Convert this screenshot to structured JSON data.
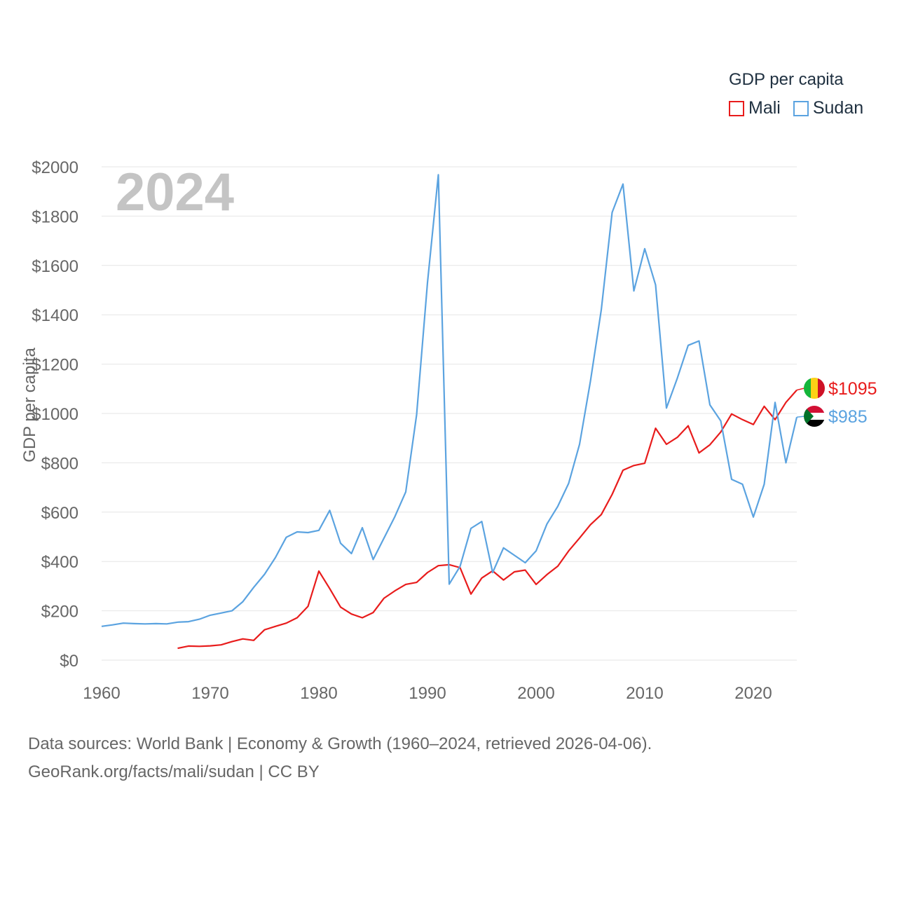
{
  "legend": {
    "title": "GDP per capita",
    "items": [
      {
        "label": "Mali",
        "color": "#e81c1c"
      },
      {
        "label": "Sudan",
        "color": "#5ba3e0"
      }
    ]
  },
  "footer": {
    "line1": "Data sources: World Bank | Economy & Growth (1960–2024, retrieved 2026-04-06).",
    "line2": "GeoRank.org/facts/mali/sudan | CC BY"
  },
  "chart_data": {
    "type": "line",
    "year_label": "2024",
    "ylabel": "GDP per capita",
    "ylim": [
      0,
      2000
    ],
    "xlim": [
      1960,
      2024
    ],
    "yticks": [
      0,
      200,
      400,
      600,
      800,
      1000,
      1200,
      1400,
      1600,
      1800,
      2000
    ],
    "ytick_labels": [
      "$0",
      "$200",
      "$400",
      "$600",
      "$800",
      "$1000",
      "$1200",
      "$1400",
      "$1600",
      "$1800",
      "$2000"
    ],
    "xticks": [
      1960,
      1970,
      1980,
      1990,
      2000,
      2010,
      2020
    ],
    "xtick_labels": [
      "1960",
      "1970",
      "1980",
      "1990",
      "2000",
      "2010",
      "2020"
    ],
    "grid": true,
    "series": [
      {
        "name": "Mali",
        "color": "#e81c1c",
        "end_label": "$1095",
        "flag": "mali",
        "x": [
          1967,
          1968,
          1969,
          1970,
          1971,
          1972,
          1973,
          1974,
          1975,
          1976,
          1977,
          1978,
          1979,
          1980,
          1981,
          1982,
          1983,
          1984,
          1985,
          1986,
          1987,
          1988,
          1989,
          1990,
          1991,
          1992,
          1993,
          1994,
          1995,
          1996,
          1997,
          1998,
          1999,
          2000,
          2001,
          2002,
          2003,
          2004,
          2005,
          2006,
          2007,
          2008,
          2009,
          2010,
          2011,
          2012,
          2013,
          2014,
          2015,
          2016,
          2017,
          2018,
          2019,
          2020,
          2021,
          2022,
          2023,
          2024
        ],
        "values": [
          48,
          57,
          56,
          58,
          62,
          75,
          86,
          80,
          123,
          137,
          150,
          172,
          218,
          361,
          290,
          215,
          187,
          172,
          193,
          251,
          281,
          307,
          315,
          355,
          383,
          387,
          375,
          268,
          333,
          362,
          325,
          358,
          365,
          307,
          347,
          381,
          443,
          495,
          549,
          590,
          672,
          770,
          789,
          798,
          940,
          875,
          903,
          950,
          840,
          873,
          925,
          998,
          975,
          955,
          1029,
          975,
          1045,
          1095
        ]
      },
      {
        "name": "Sudan",
        "color": "#5ba3e0",
        "end_label": "$985",
        "flag": "sudan",
        "x": [
          1960,
          1961,
          1962,
          1963,
          1964,
          1965,
          1966,
          1967,
          1968,
          1969,
          1970,
          1971,
          1972,
          1973,
          1974,
          1975,
          1976,
          1977,
          1978,
          1979,
          1980,
          1981,
          1982,
          1983,
          1984,
          1985,
          1986,
          1987,
          1988,
          1989,
          1990,
          1991,
          1992,
          1993,
          1994,
          1995,
          1996,
          1997,
          1998,
          1999,
          2000,
          2001,
          2002,
          2003,
          2004,
          2005,
          2006,
          2007,
          2008,
          2009,
          2010,
          2011,
          2012,
          2013,
          2014,
          2015,
          2016,
          2017,
          2018,
          2019,
          2020,
          2021,
          2022,
          2023,
          2024
        ],
        "values": [
          137,
          143,
          150,
          148,
          147,
          148,
          147,
          154,
          156,
          166,
          182,
          191,
          200,
          237,
          295,
          348,
          416,
          498,
          520,
          517,
          526,
          607,
          474,
          432,
          537,
          408,
          495,
          582,
          682,
          995,
          1530,
          1968,
          308,
          380,
          534,
          562,
          355,
          455,
          425,
          395,
          443,
          552,
          624,
          717,
          875,
          1130,
          1420,
          1815,
          1930,
          1497,
          1668,
          1521,
          1022,
          1143,
          1276,
          1294,
          1035,
          970,
          733,
          713,
          580,
          713,
          1045,
          800,
          985
        ]
      }
    ]
  }
}
